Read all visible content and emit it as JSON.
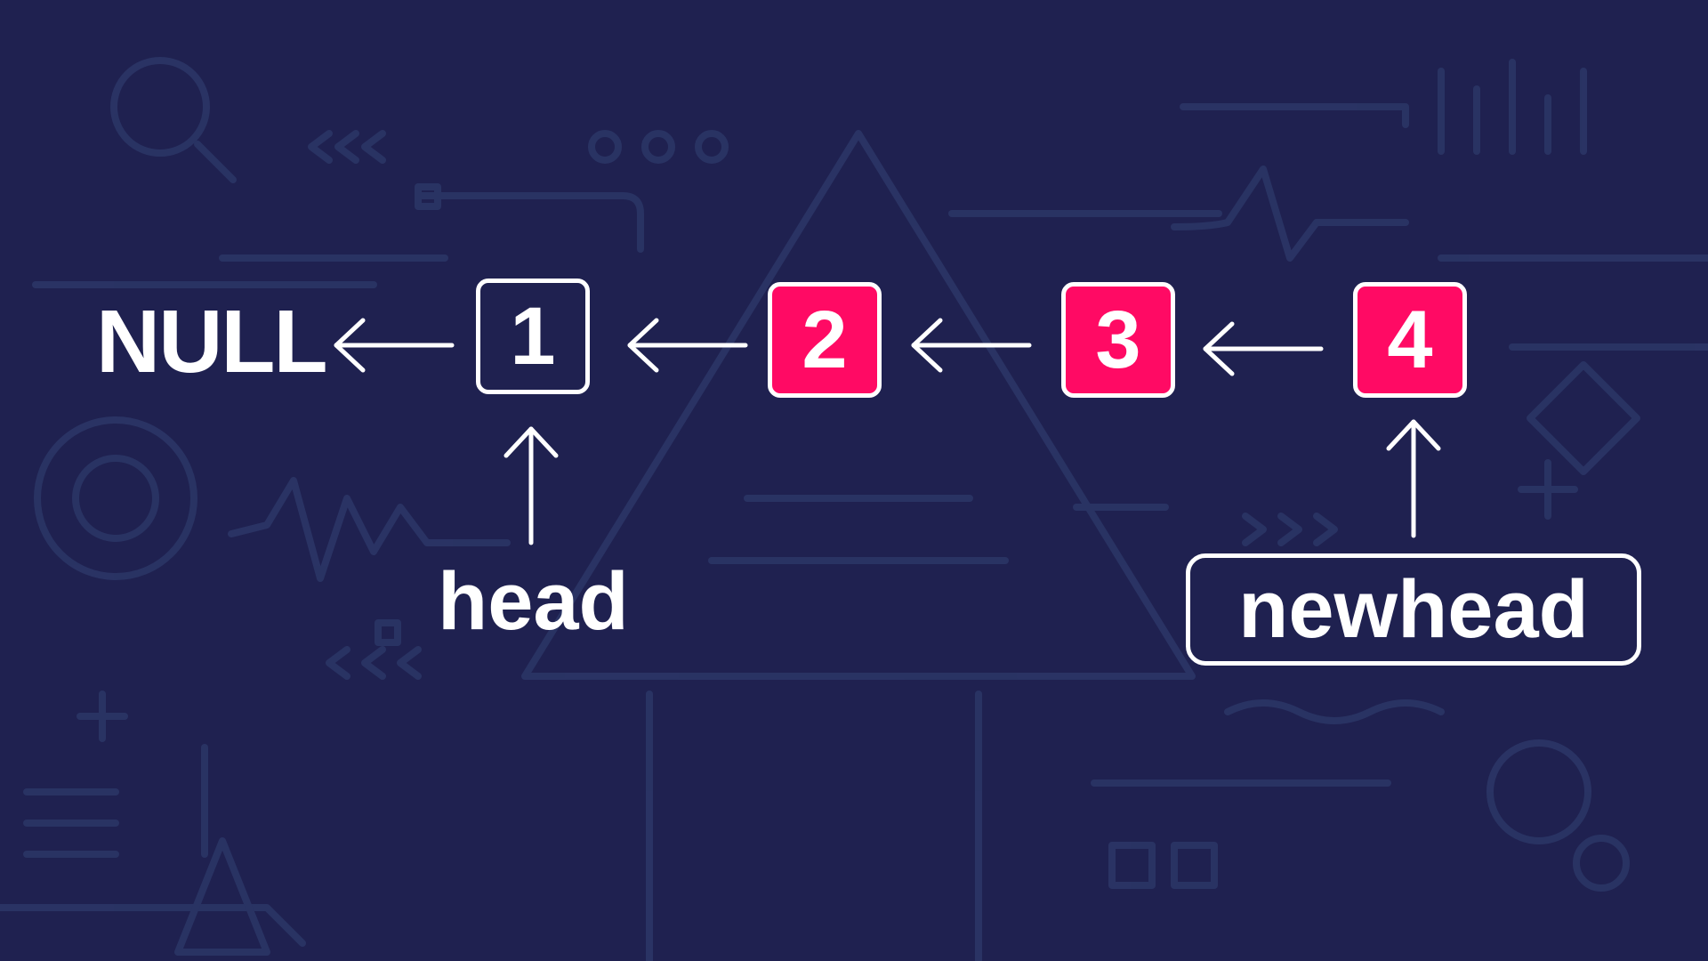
{
  "diagram": {
    "terminal_label": "NULL",
    "nodes": [
      {
        "value": "1",
        "style": "outline"
      },
      {
        "value": "2",
        "style": "filled"
      },
      {
        "value": "3",
        "style": "filled"
      },
      {
        "value": "4",
        "style": "filled"
      }
    ],
    "pointers": {
      "head": "head",
      "newhead": "newhead"
    },
    "links": [
      {
        "from": "1",
        "to": "NULL"
      },
      {
        "from": "2",
        "to": "1"
      },
      {
        "from": "3",
        "to": "2"
      },
      {
        "from": "4",
        "to": "3"
      }
    ]
  },
  "colors": {
    "background": "#1f2150",
    "node_fill": "#ff0a64",
    "stroke": "#ffffff",
    "decoration": "#2b3566"
  }
}
